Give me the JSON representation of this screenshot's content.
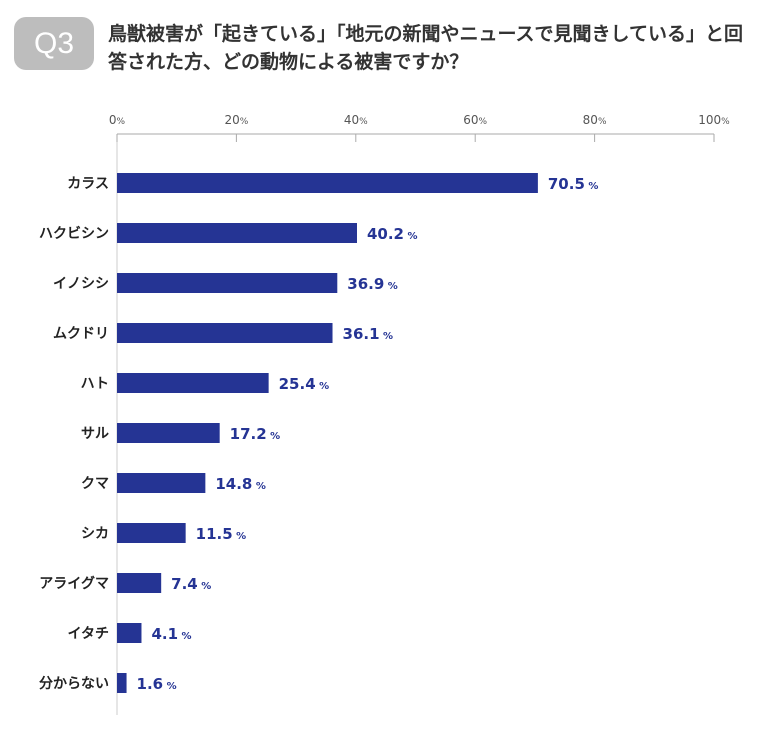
{
  "badge": "Q3",
  "title": "鳥獣被害が「起きている」「地元の新聞やニュースで見聞きしている」と回答された方、どの動物による被害ですか？",
  "chart_data": {
    "type": "bar",
    "orientation": "horizontal",
    "categories": [
      "カラス",
      "ハクビシン",
      "イノシシ",
      "ムクドリ",
      "ハト",
      "サル",
      "クマ",
      "シカ",
      "アライグマ",
      "イタチ",
      "分からない"
    ],
    "values": [
      70.5,
      40.2,
      36.9,
      36.1,
      25.4,
      17.2,
      14.8,
      11.5,
      7.4,
      4.1,
      1.6
    ],
    "xlim": [
      0,
      100
    ],
    "ticks": [
      0,
      20,
      40,
      60,
      80,
      100
    ],
    "unit": "%",
    "bar_color": "#253494",
    "label_color": "#253494"
  }
}
